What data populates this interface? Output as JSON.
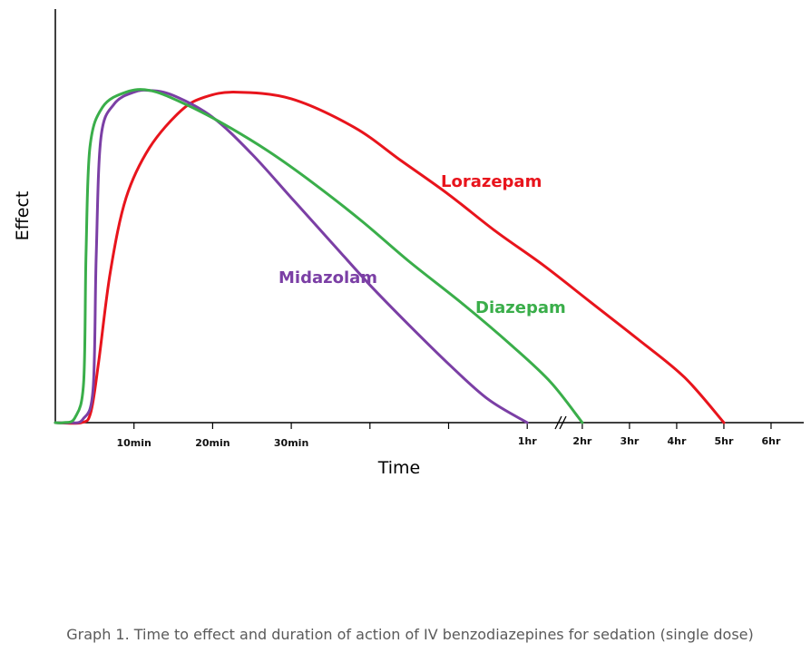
{
  "chart_data": {
    "type": "line",
    "title": "",
    "xlabel": "Time",
    "ylabel": "Effect",
    "x_axis_break": "between 1hr and 2hr",
    "ticks": [
      {
        "label": "10min",
        "t": 10
      },
      {
        "label": "20min",
        "t": 20
      },
      {
        "label": "30min",
        "t": 30
      },
      {
        "label": "",
        "t": 40
      },
      {
        "label": "",
        "t": 50
      },
      {
        "label": "1hr",
        "t": 60
      },
      {
        "label": "2hr",
        "t": 67
      },
      {
        "label": "3hr",
        "t": 73
      },
      {
        "label": "4hr",
        "t": 79
      },
      {
        "label": "5hr",
        "t": 85
      },
      {
        "label": "6hr",
        "t": 91
      }
    ],
    "xlim": [
      0,
      97
    ],
    "ylim": [
      0,
      1.05
    ],
    "series": [
      {
        "name": "Lorazepam",
        "color": "#e8141c",
        "points": [
          [
            0,
            0
          ],
          [
            3.3,
            0
          ],
          [
            4.5,
            0.03
          ],
          [
            5.5,
            0.18
          ],
          [
            7,
            0.45
          ],
          [
            9,
            0.67
          ],
          [
            12,
            0.82
          ],
          [
            16,
            0.93
          ],
          [
            19,
            0.97
          ],
          [
            23,
            0.985
          ],
          [
            30,
            0.965
          ],
          [
            38,
            0.88
          ],
          [
            44,
            0.78
          ],
          [
            50,
            0.68
          ],
          [
            56,
            0.57
          ],
          [
            62,
            0.47
          ],
          [
            68,
            0.36
          ],
          [
            74,
            0.25
          ],
          [
            80,
            0.135
          ],
          [
            85,
            0.0
          ]
        ]
      },
      {
        "name": "Midazolam",
        "color": "#7b3fa5",
        "points": [
          [
            0,
            0
          ],
          [
            1.8,
            0
          ],
          [
            3.5,
            0.01
          ],
          [
            4.8,
            0.1
          ],
          [
            5.2,
            0.5
          ],
          [
            5.8,
            0.85
          ],
          [
            7.5,
            0.95
          ],
          [
            10,
            0.985
          ],
          [
            12,
            0.99
          ],
          [
            15,
            0.975
          ],
          [
            20,
            0.91
          ],
          [
            25,
            0.8
          ],
          [
            30,
            0.67
          ],
          [
            35,
            0.54
          ],
          [
            40,
            0.41
          ],
          [
            45,
            0.29
          ],
          [
            50,
            0.175
          ],
          [
            55,
            0.07
          ],
          [
            60,
            0.0
          ]
        ]
      },
      {
        "name": "Diazepam",
        "color": "#3aae4a",
        "points": [
          [
            0,
            0
          ],
          [
            1.0,
            0
          ],
          [
            2.5,
            0.015
          ],
          [
            3.6,
            0.12
          ],
          [
            3.9,
            0.5
          ],
          [
            4.4,
            0.82
          ],
          [
            6,
            0.94
          ],
          [
            9,
            0.985
          ],
          [
            12,
            0.99
          ],
          [
            16,
            0.955
          ],
          [
            21,
            0.895
          ],
          [
            27,
            0.81
          ],
          [
            33,
            0.71
          ],
          [
            39,
            0.6
          ],
          [
            45,
            0.48
          ],
          [
            52,
            0.35
          ],
          [
            58,
            0.23
          ],
          [
            63,
            0.12
          ],
          [
            67,
            0.0
          ]
        ]
      }
    ]
  },
  "labels": {
    "lorazepam": "Lorazepam",
    "midazolam": "Midazolam",
    "diazepam": "Diazepam"
  },
  "caption": "Graph 1. Time to effect and duration of action of IV benzodiazepines for sedation (single dose)"
}
